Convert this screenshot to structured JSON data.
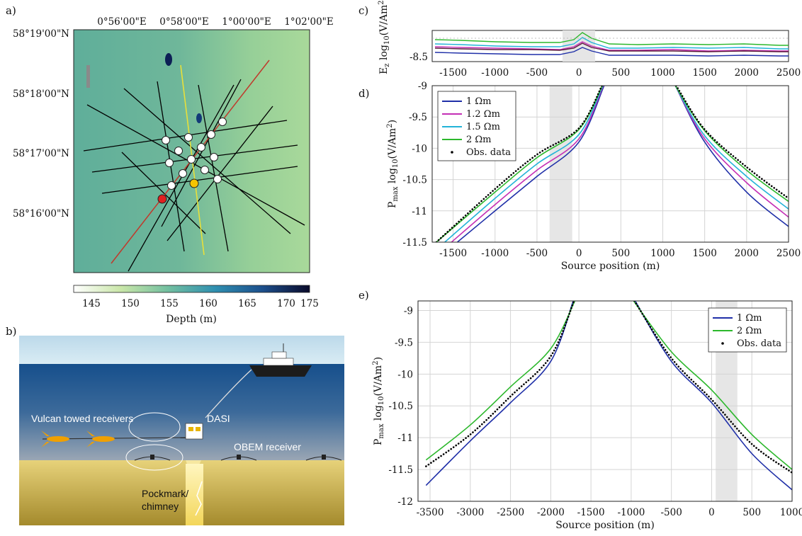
{
  "panels": {
    "a": "a)",
    "b": "b)",
    "c": "c)",
    "d": "d)",
    "e": "e)"
  },
  "map": {
    "lon_ticks": [
      "0°56'00\"E",
      "0°58'00\"E",
      "1°00'00\"E",
      "1°02'00\"E"
    ],
    "lat_ticks": [
      "58°19'00\"N",
      "58°18'00\"N",
      "58°17'00\"N",
      "58°16'00\"N"
    ],
    "colorbar_ticks": [
      "145",
      "150",
      "155",
      "160",
      "165",
      "170",
      "175"
    ],
    "colorbar_label": "Depth (m)",
    "colors": {
      "line": "#000000",
      "yellow_line": "#e8e03a",
      "red_line": "#c0392b",
      "receiver": "#ffffff",
      "red_marker": "#e02020",
      "yellow_marker": "#f5c400"
    }
  },
  "schematic": {
    "towed_label": "Vulcan towed receivers",
    "dasi_label": "DASI",
    "obem_label": "OBEM receiver",
    "pockmark_label_1": "Pockmark/",
    "pockmark_label_2": "chimney"
  },
  "panel_c": {
    "ylabel_prefix": "E",
    "ylabel_sub": "z",
    "ylabel_rest": " log",
    "ylabel_base": "10",
    "ylabel_unit": "(V/Am",
    "ylabel_exp": "2",
    "ylabel_end": ")",
    "y_tick": "-8.5",
    "x_ticks": [
      "-1500",
      "-1000",
      "-500",
      "0",
      "500",
      "1000",
      "1500",
      "2000",
      "2500"
    ]
  },
  "chart_data": [
    {
      "type": "line",
      "panel": "d",
      "xlabel": "Source position (m)",
      "ylabel": "P_max log10(V/Am2)",
      "xlim": [
        -1750,
        2500
      ],
      "ylim": [
        -11.5,
        -9
      ],
      "x_ticks": [
        "-1500",
        "-1000",
        "-500",
        "0",
        "500",
        "1000",
        "1500",
        "2000",
        "2500"
      ],
      "y_ticks": [
        "-9",
        "-9.5",
        "-10",
        "-10.5",
        "-11",
        "-11.5"
      ],
      "shaded_x": [
        -350,
        -80
      ],
      "legend_position": "top-left",
      "series": [
        {
          "name": "1 Ωm",
          "color": "#1f2fa8",
          "left": [
            [
              -1450,
              -11.5
            ],
            [
              -1000,
              -11.0
            ],
            [
              -500,
              -10.45
            ],
            [
              0,
              -9.9
            ],
            [
              300,
              -9.0
            ]
          ],
          "right": [
            [
              1150,
              -9.0
            ],
            [
              1500,
              -9.9
            ],
            [
              2000,
              -10.7
            ],
            [
              2500,
              -11.25
            ]
          ]
        },
        {
          "name": "1.2 Ωm",
          "color": "#c42fb5",
          "left": [
            [
              -1520,
              -11.5
            ],
            [
              -1000,
              -10.9
            ],
            [
              -500,
              -10.35
            ],
            [
              0,
              -9.85
            ],
            [
              290,
              -9.0
            ]
          ],
          "right": [
            [
              1150,
              -9.0
            ],
            [
              1500,
              -9.85
            ],
            [
              2000,
              -10.55
            ],
            [
              2500,
              -11.1
            ]
          ]
        },
        {
          "name": "1.5 Ωm",
          "color": "#22b3d8",
          "left": [
            [
              -1600,
              -11.5
            ],
            [
              -1000,
              -10.8
            ],
            [
              -500,
              -10.25
            ],
            [
              0,
              -9.78
            ],
            [
              285,
              -9.0
            ]
          ],
          "right": [
            [
              1150,
              -9.0
            ],
            [
              1500,
              -9.8
            ],
            [
              2000,
              -10.45
            ],
            [
              2500,
              -10.97
            ]
          ]
        },
        {
          "name": "2 Ωm",
          "color": "#2cb82c",
          "left": [
            [
              -1700,
              -11.5
            ],
            [
              -1000,
              -10.7
            ],
            [
              -500,
              -10.15
            ],
            [
              0,
              -9.7
            ],
            [
              280,
              -9.0
            ]
          ],
          "right": [
            [
              1150,
              -9.0
            ],
            [
              1500,
              -9.72
            ],
            [
              2000,
              -10.35
            ],
            [
              2500,
              -10.85
            ]
          ]
        },
        {
          "name": "Obs. data",
          "color": "#000000",
          "dotted": true,
          "left": [
            [
              -1700,
              -11.5
            ],
            [
              -1000,
              -10.65
            ],
            [
              -500,
              -10.1
            ],
            [
              0,
              -9.68
            ],
            [
              275,
              -9.0
            ]
          ],
          "right": [
            [
              1160,
              -9.0
            ],
            [
              1500,
              -9.7
            ],
            [
              2000,
              -10.3
            ],
            [
              2500,
              -10.8
            ]
          ]
        }
      ]
    },
    {
      "type": "line",
      "panel": "e",
      "xlabel": "Source position (m)",
      "ylabel": "P_max log10(V/Am2)",
      "xlim": [
        -3650,
        1000
      ],
      "ylim": [
        -12,
        -8.85
      ],
      "x_ticks": [
        "-3500",
        "-3000",
        "-2500",
        "-2000",
        "-1500",
        "-1000",
        "-500",
        "0",
        "500",
        "1000"
      ],
      "y_ticks": [
        "-9",
        "-9.5",
        "-10",
        "-10.5",
        "-11",
        "-11.5",
        "-12"
      ],
      "shaded_x": [
        50,
        320
      ],
      "legend_position": "top-right",
      "series": [
        {
          "name": "1 Ωm",
          "color": "#1f2fa8",
          "left": [
            [
              -3550,
              -11.75
            ],
            [
              -3000,
              -11.05
            ],
            [
              -2500,
              -10.45
            ],
            [
              -2000,
              -9.8
            ],
            [
              -1720,
              -8.85
            ]
          ],
          "right": [
            [
              -950,
              -8.85
            ],
            [
              -500,
              -9.8
            ],
            [
              0,
              -10.45
            ],
            [
              500,
              -11.25
            ],
            [
              1000,
              -11.82
            ]
          ]
        },
        {
          "name": "2 Ωm",
          "color": "#2cb82c",
          "left": [
            [
              -3550,
              -11.35
            ],
            [
              -3000,
              -10.8
            ],
            [
              -2500,
              -10.2
            ],
            [
              -2000,
              -9.6
            ],
            [
              -1700,
              -8.85
            ]
          ],
          "right": [
            [
              -970,
              -8.85
            ],
            [
              -500,
              -9.65
            ],
            [
              0,
              -10.25
            ],
            [
              500,
              -10.95
            ],
            [
              1000,
              -11.5
            ]
          ]
        },
        {
          "name": "Obs. data",
          "color": "#000000",
          "dotted": true,
          "left": [
            [
              -3550,
              -11.45
            ],
            [
              -3000,
              -10.95
            ],
            [
              -2500,
              -10.35
            ],
            [
              -2000,
              -9.72
            ],
            [
              -1710,
              -8.85
            ]
          ],
          "right": [
            [
              -960,
              -8.85
            ],
            [
              -500,
              -9.75
            ],
            [
              0,
              -10.4
            ],
            [
              500,
              -11.1
            ],
            [
              1000,
              -11.55
            ]
          ]
        }
      ]
    }
  ]
}
